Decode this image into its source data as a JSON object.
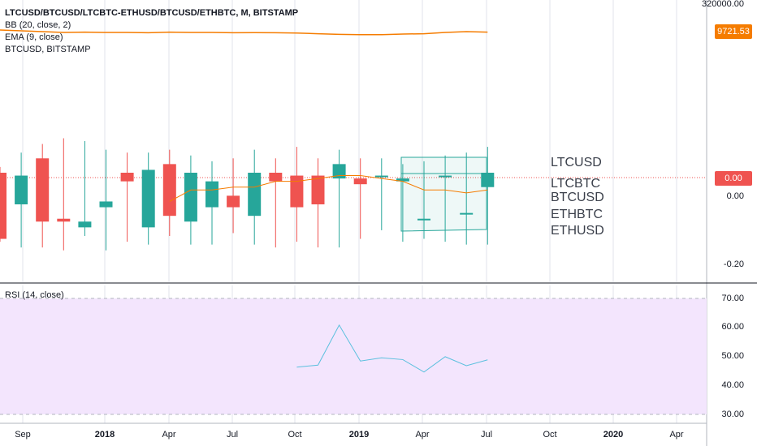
{
  "header": {
    "title": "LTCUSD/BTCUSD/LTCBTC-ETHUSD/BTCUSD/ETHBTC, M, BITSTAMP",
    "indicator_bb": "BB (20, close, 2)",
    "indicator_ema": "EMA (9, close)",
    "overlay": "BTCUSD, BITSTAMP"
  },
  "rsi_panel": {
    "label": "RSI (14, close)"
  },
  "price_axis": {
    "top_label": "320000.00",
    "badge_btc": "9721.53",
    "badge_zero": "0.00",
    "labels": [
      "0.00",
      "-0.20"
    ]
  },
  "rsi_axis": {
    "labels": [
      "70.00",
      "60.00",
      "50.00",
      "40.00",
      "30.00"
    ]
  },
  "time_axis": {
    "labels": [
      {
        "text": "Sep",
        "bold": false
      },
      {
        "text": "2018",
        "bold": true
      },
      {
        "text": "Apr",
        "bold": false
      },
      {
        "text": "Jul",
        "bold": false
      },
      {
        "text": "Oct",
        "bold": false
      },
      {
        "text": "2019",
        "bold": true
      },
      {
        "text": "Apr",
        "bold": false
      },
      {
        "text": "Jul",
        "bold": false
      },
      {
        "text": "Oct",
        "bold": false
      },
      {
        "text": "2020",
        "bold": true
      },
      {
        "text": "Apr",
        "bold": false
      }
    ]
  },
  "symbols": [
    "LTCUSD",
    "LTCBTC",
    "BTCUSD",
    "ETHBTC",
    "ETHUSD"
  ],
  "colors": {
    "up": "#26a69a",
    "down": "#ef5350",
    "btc_line": "#f57c00",
    "rsi_fill": "#f3e5fd",
    "rsi_line": "#5bc0de",
    "ema": "#f57c00",
    "zero_line": "#ef5350",
    "grid": "#e1e3eb"
  },
  "chart_data": [
    {
      "type": "candlestick",
      "title": "LTCUSD/BTCUSD/LTCBTC-ETHUSD/BTCUSD/ETHBTC",
      "ylim": [
        -0.25,
        0.3
      ],
      "candles": [
        {
          "o": 0.08,
          "h": 0.1,
          "l": -0.16,
          "c": -0.15
        },
        {
          "o": -0.03,
          "h": 0.15,
          "l": -0.18,
          "c": 0.07
        },
        {
          "o": 0.13,
          "h": 0.18,
          "l": -0.18,
          "c": -0.09
        },
        {
          "o": -0.08,
          "h": 0.2,
          "l": -0.19,
          "c": -0.09
        },
        {
          "o": -0.11,
          "h": 0.19,
          "l": -0.14,
          "c": -0.09
        },
        {
          "o": -0.04,
          "h": 0.16,
          "l": -0.19,
          "c": -0.02
        },
        {
          "o": 0.08,
          "h": 0.15,
          "l": -0.16,
          "c": 0.05
        },
        {
          "o": -0.11,
          "h": 0.15,
          "l": -0.17,
          "c": 0.09
        },
        {
          "o": 0.11,
          "h": 0.16,
          "l": -0.14,
          "c": -0.07
        },
        {
          "o": -0.09,
          "h": 0.14,
          "l": -0.17,
          "c": 0.08
        },
        {
          "o": -0.04,
          "h": 0.12,
          "l": -0.17,
          "c": 0.05
        },
        {
          "o": 0.0,
          "h": 0.13,
          "l": -0.13,
          "c": -0.04
        },
        {
          "o": -0.07,
          "h": 0.16,
          "l": -0.17,
          "c": 0.08
        },
        {
          "o": 0.08,
          "h": 0.13,
          "l": -0.18,
          "c": 0.05
        },
        {
          "o": 0.07,
          "h": 0.17,
          "l": -0.16,
          "c": -0.04
        },
        {
          "o": 0.07,
          "h": 0.13,
          "l": -0.18,
          "c": -0.03
        },
        {
          "o": 0.06,
          "h": 0.16,
          "l": -0.18,
          "c": 0.11
        },
        {
          "o": 0.06,
          "h": 0.13,
          "l": -0.15,
          "c": 0.04
        },
        {
          "o": 0.07,
          "h": 0.13,
          "l": -0.12,
          "c": 0.07
        },
        {
          "o": 0.05,
          "h": 0.11,
          "l": -0.16,
          "c": 0.06
        },
        {
          "o": -0.08,
          "h": 0.12,
          "l": -0.15,
          "c": -0.08
        },
        {
          "o": 0.07,
          "h": 0.14,
          "l": -0.16,
          "c": 0.07
        },
        {
          "o": -0.06,
          "h": 0.15,
          "l": -0.17,
          "c": -0.06
        },
        {
          "o": 0.03,
          "h": 0.17,
          "l": -0.17,
          "c": 0.08
        }
      ],
      "btc_line": [
        0.95,
        0.9,
        0.85,
        0.8,
        0.82,
        0.8,
        0.8,
        0.78,
        0.82,
        0.8,
        0.8,
        0.78,
        0.79,
        0.78,
        0.76,
        0.72,
        0.68,
        0.66,
        0.66,
        0.7,
        0.72,
        0.8,
        0.85,
        0.82
      ],
      "ema": [
        null,
        null,
        null,
        null,
        null,
        null,
        null,
        null,
        -0.02,
        0.02,
        0.02,
        0.03,
        0.03,
        0.05,
        0.05,
        0.06,
        0.07,
        0.07,
        0.06,
        0.05,
        0.02,
        0.02,
        0.01,
        0.02
      ]
    },
    {
      "type": "line",
      "title": "RSI (14, close)",
      "ylim": [
        28,
        72
      ],
      "x_start_index": 14,
      "values": [
        46.3,
        47.0,
        60.8,
        48.4,
        49.5,
        48.9,
        44.6,
        49.9,
        46.8,
        48.8
      ]
    }
  ]
}
